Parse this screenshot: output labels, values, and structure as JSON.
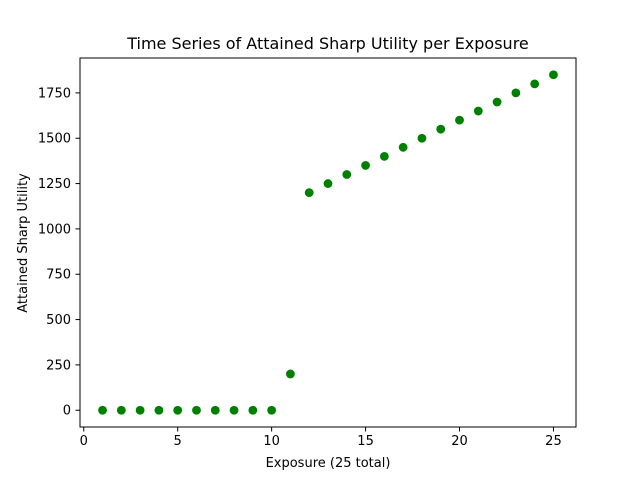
{
  "chart_data": {
    "type": "scatter",
    "title": "Time Series of Attained Sharp Utility per Exposure",
    "xlabel": "Exposure (25 total)",
    "ylabel": "Attained Sharp Utility",
    "xlim": [
      -0.2,
      26.2
    ],
    "ylim": [
      -92.5,
      1942.5
    ],
    "xticks": [
      0,
      5,
      10,
      15,
      20,
      25
    ],
    "yticks": [
      0,
      250,
      500,
      750,
      1000,
      1250,
      1500,
      1750
    ],
    "grid": false,
    "legend": "none",
    "marker_color": "#008000",
    "series": [
      {
        "x": [
          1,
          2,
          3,
          4,
          5,
          6,
          7,
          8,
          9,
          10,
          11,
          12,
          13,
          14,
          15,
          16,
          17,
          18,
          19,
          20,
          21,
          22,
          23,
          24,
          25
        ],
        "y": [
          0,
          0,
          0,
          0,
          0,
          0,
          0,
          0,
          0,
          0,
          200,
          1200,
          1250,
          1300,
          1350,
          1400,
          1450,
          1500,
          1550,
          1600,
          1650,
          1700,
          1750,
          1800,
          1850
        ]
      }
    ]
  }
}
